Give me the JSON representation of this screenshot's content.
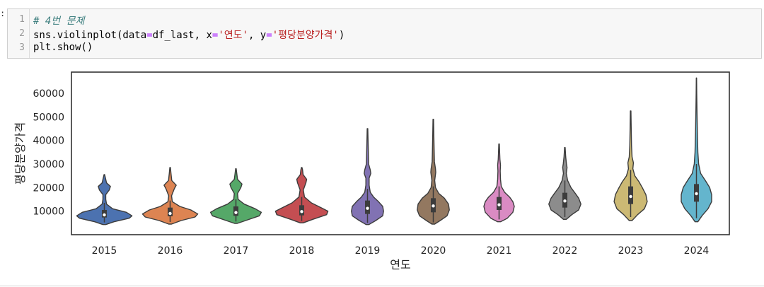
{
  "cell": {
    "prompt_mark": ":",
    "lines": [
      {
        "no": "1",
        "segments": [
          {
            "text": "# 4번 문제",
            "cls": "cm-comment"
          }
        ]
      },
      {
        "no": "2",
        "segments": [
          {
            "text": "sns.violinplot(data",
            "cls": ""
          },
          {
            "text": "=",
            "cls": "cm-op"
          },
          {
            "text": "df_last, x",
            "cls": ""
          },
          {
            "text": "=",
            "cls": "cm-op"
          },
          {
            "text": "'연도'",
            "cls": "cm-str"
          },
          {
            "text": ", y",
            "cls": ""
          },
          {
            "text": "=",
            "cls": "cm-op"
          },
          {
            "text": "'평당분양가격'",
            "cls": "cm-str"
          },
          {
            "text": ")",
            "cls": ""
          }
        ]
      },
      {
        "no": "3",
        "segments": [
          {
            "text": "plt.show()",
            "cls": ""
          }
        ]
      }
    ]
  },
  "chart_data": {
    "type": "violin",
    "xlabel": "연도",
    "ylabel": "평당분양가격",
    "ylim": [
      0,
      69000
    ],
    "yticks": [
      10000,
      20000,
      30000,
      40000,
      50000,
      60000
    ],
    "categories": [
      "2015",
      "2016",
      "2017",
      "2018",
      "2019",
      "2020",
      "2021",
      "2022",
      "2023",
      "2024"
    ],
    "colors": [
      "#4c72b0",
      "#dd8452",
      "#55a868",
      "#c44e52",
      "#8172b3",
      "#937860",
      "#da8bc3",
      "#8c8c8c",
      "#ccb974",
      "#64b5cd"
    ],
    "grid": false,
    "legend": "none",
    "violins": [
      {
        "year": "2015",
        "min": 4300,
        "max": 25500,
        "q1": 7300,
        "median": 8400,
        "q3": 10500,
        "whisker_low": 5200,
        "whisker_high": 13500,
        "profile": [
          [
            4300,
            0.05
          ],
          [
            5500,
            0.35
          ],
          [
            7000,
            0.9
          ],
          [
            8000,
            1.0
          ],
          [
            9500,
            0.8
          ],
          [
            11000,
            0.3
          ],
          [
            13000,
            0.08
          ],
          [
            15000,
            0.05
          ],
          [
            17000,
            0.05
          ],
          [
            19000,
            0.18
          ],
          [
            20500,
            0.22
          ],
          [
            22000,
            0.08
          ],
          [
            24000,
            0.04
          ],
          [
            25500,
            0.01
          ]
        ]
      },
      {
        "year": "2016",
        "min": 4500,
        "max": 28500,
        "q1": 7800,
        "median": 9000,
        "q3": 11500,
        "whisker_low": 5400,
        "whisker_high": 14500,
        "profile": [
          [
            4500,
            0.05
          ],
          [
            6000,
            0.4
          ],
          [
            7500,
            0.9
          ],
          [
            8800,
            1.0
          ],
          [
            10500,
            0.75
          ],
          [
            12000,
            0.35
          ],
          [
            14000,
            0.08
          ],
          [
            16500,
            0.05
          ],
          [
            19500,
            0.15
          ],
          [
            21000,
            0.22
          ],
          [
            23000,
            0.06
          ],
          [
            26000,
            0.03
          ],
          [
            28500,
            0.01
          ]
        ]
      },
      {
        "year": "2017",
        "min": 4800,
        "max": 28000,
        "q1": 8000,
        "median": 9400,
        "q3": 12000,
        "whisker_low": 5600,
        "whisker_high": 15000,
        "profile": [
          [
            4800,
            0.05
          ],
          [
            6000,
            0.35
          ],
          [
            8000,
            0.85
          ],
          [
            9500,
            0.92
          ],
          [
            11000,
            0.7
          ],
          [
            13000,
            0.3
          ],
          [
            15000,
            0.08
          ],
          [
            17500,
            0.06
          ],
          [
            20000,
            0.18
          ],
          [
            21500,
            0.22
          ],
          [
            23500,
            0.06
          ],
          [
            26000,
            0.03
          ],
          [
            28000,
            0.01
          ]
        ]
      },
      {
        "year": "2018",
        "min": 5000,
        "max": 28500,
        "q1": 8200,
        "median": 9800,
        "q3": 12500,
        "whisker_low": 5800,
        "whisker_high": 16000,
        "profile": [
          [
            5000,
            0.05
          ],
          [
            6500,
            0.4
          ],
          [
            8500,
            0.9
          ],
          [
            10000,
            0.95
          ],
          [
            11500,
            0.7
          ],
          [
            13500,
            0.35
          ],
          [
            16000,
            0.1
          ],
          [
            19000,
            0.06
          ],
          [
            22000,
            0.15
          ],
          [
            23500,
            0.18
          ],
          [
            25500,
            0.05
          ],
          [
            27500,
            0.03
          ],
          [
            28500,
            0.01
          ]
        ]
      },
      {
        "year": "2019",
        "min": 4300,
        "max": 45000,
        "q1": 8800,
        "median": 11200,
        "q3": 14500,
        "whisker_low": 5000,
        "whisker_high": 19500,
        "profile": [
          [
            4300,
            0.05
          ],
          [
            6000,
            0.3
          ],
          [
            8000,
            0.55
          ],
          [
            10000,
            0.58
          ],
          [
            12000,
            0.55
          ],
          [
            14000,
            0.4
          ],
          [
            16000,
            0.22
          ],
          [
            18000,
            0.1
          ],
          [
            21000,
            0.06
          ],
          [
            24000,
            0.06
          ],
          [
            26000,
            0.12
          ],
          [
            27500,
            0.1
          ],
          [
            30000,
            0.04
          ],
          [
            35000,
            0.03
          ],
          [
            40000,
            0.02
          ],
          [
            45000,
            0.01
          ]
        ]
      },
      {
        "year": "2020",
        "min": 4500,
        "max": 49000,
        "q1": 9500,
        "median": 12200,
        "q3": 15500,
        "whisker_low": 5200,
        "whisker_high": 20500,
        "profile": [
          [
            4500,
            0.05
          ],
          [
            6000,
            0.25
          ],
          [
            8000,
            0.5
          ],
          [
            10500,
            0.58
          ],
          [
            13000,
            0.55
          ],
          [
            15500,
            0.4
          ],
          [
            17500,
            0.2
          ],
          [
            20000,
            0.08
          ],
          [
            23000,
            0.05
          ],
          [
            26500,
            0.09
          ],
          [
            28000,
            0.08
          ],
          [
            31000,
            0.04
          ],
          [
            36000,
            0.03
          ],
          [
            42000,
            0.02
          ],
          [
            49000,
            0.01
          ]
        ]
      },
      {
        "year": "2021",
        "min": 5500,
        "max": 38500,
        "q1": 10500,
        "median": 12700,
        "q3": 16000,
        "whisker_low": 6500,
        "whisker_high": 20500,
        "profile": [
          [
            5500,
            0.05
          ],
          [
            7000,
            0.3
          ],
          [
            9500,
            0.5
          ],
          [
            12000,
            0.55
          ],
          [
            14000,
            0.5
          ],
          [
            16000,
            0.38
          ],
          [
            18000,
            0.2
          ],
          [
            20500,
            0.08
          ],
          [
            23500,
            0.05
          ],
          [
            27000,
            0.04
          ],
          [
            29500,
            0.05
          ],
          [
            32000,
            0.03
          ],
          [
            35000,
            0.02
          ],
          [
            38500,
            0.01
          ]
        ]
      },
      {
        "year": "2022",
        "min": 6500,
        "max": 37000,
        "q1": 11500,
        "median": 14300,
        "q3": 17800,
        "whisker_low": 7500,
        "whisker_high": 23000,
        "profile": [
          [
            6500,
            0.05
          ],
          [
            8500,
            0.25
          ],
          [
            10500,
            0.5
          ],
          [
            13000,
            0.58
          ],
          [
            15500,
            0.5
          ],
          [
            17500,
            0.38
          ],
          [
            20000,
            0.22
          ],
          [
            23000,
            0.1
          ],
          [
            26000,
            0.05
          ],
          [
            28500,
            0.08
          ],
          [
            30000,
            0.06
          ],
          [
            33000,
            0.03
          ],
          [
            37000,
            0.01
          ]
        ]
      },
      {
        "year": "2023",
        "min": 6000,
        "max": 52500,
        "q1": 13000,
        "median": 16200,
        "q3": 20500,
        "whisker_low": 7500,
        "whisker_high": 27500,
        "profile": [
          [
            6000,
            0.05
          ],
          [
            8500,
            0.25
          ],
          [
            11000,
            0.5
          ],
          [
            14000,
            0.6
          ],
          [
            17000,
            0.55
          ],
          [
            20000,
            0.42
          ],
          [
            22500,
            0.3
          ],
          [
            25000,
            0.15
          ],
          [
            28000,
            0.08
          ],
          [
            30500,
            0.1
          ],
          [
            33000,
            0.05
          ],
          [
            38000,
            0.03
          ],
          [
            45000,
            0.02
          ],
          [
            52500,
            0.01
          ]
        ]
      },
      {
        "year": "2024",
        "min": 5500,
        "max": 66500,
        "q1": 14000,
        "median": 17400,
        "q3": 21500,
        "whisker_low": 7000,
        "whisker_high": 30000,
        "profile": [
          [
            5500,
            0.05
          ],
          [
            8000,
            0.2
          ],
          [
            11000,
            0.42
          ],
          [
            14000,
            0.55
          ],
          [
            17000,
            0.55
          ],
          [
            20000,
            0.48
          ],
          [
            23000,
            0.32
          ],
          [
            26000,
            0.15
          ],
          [
            30000,
            0.08
          ],
          [
            35000,
            0.05
          ],
          [
            40000,
            0.04
          ],
          [
            45000,
            0.03
          ],
          [
            52000,
            0.02
          ],
          [
            60000,
            0.01
          ],
          [
            66500,
            0.005
          ]
        ]
      }
    ]
  }
}
